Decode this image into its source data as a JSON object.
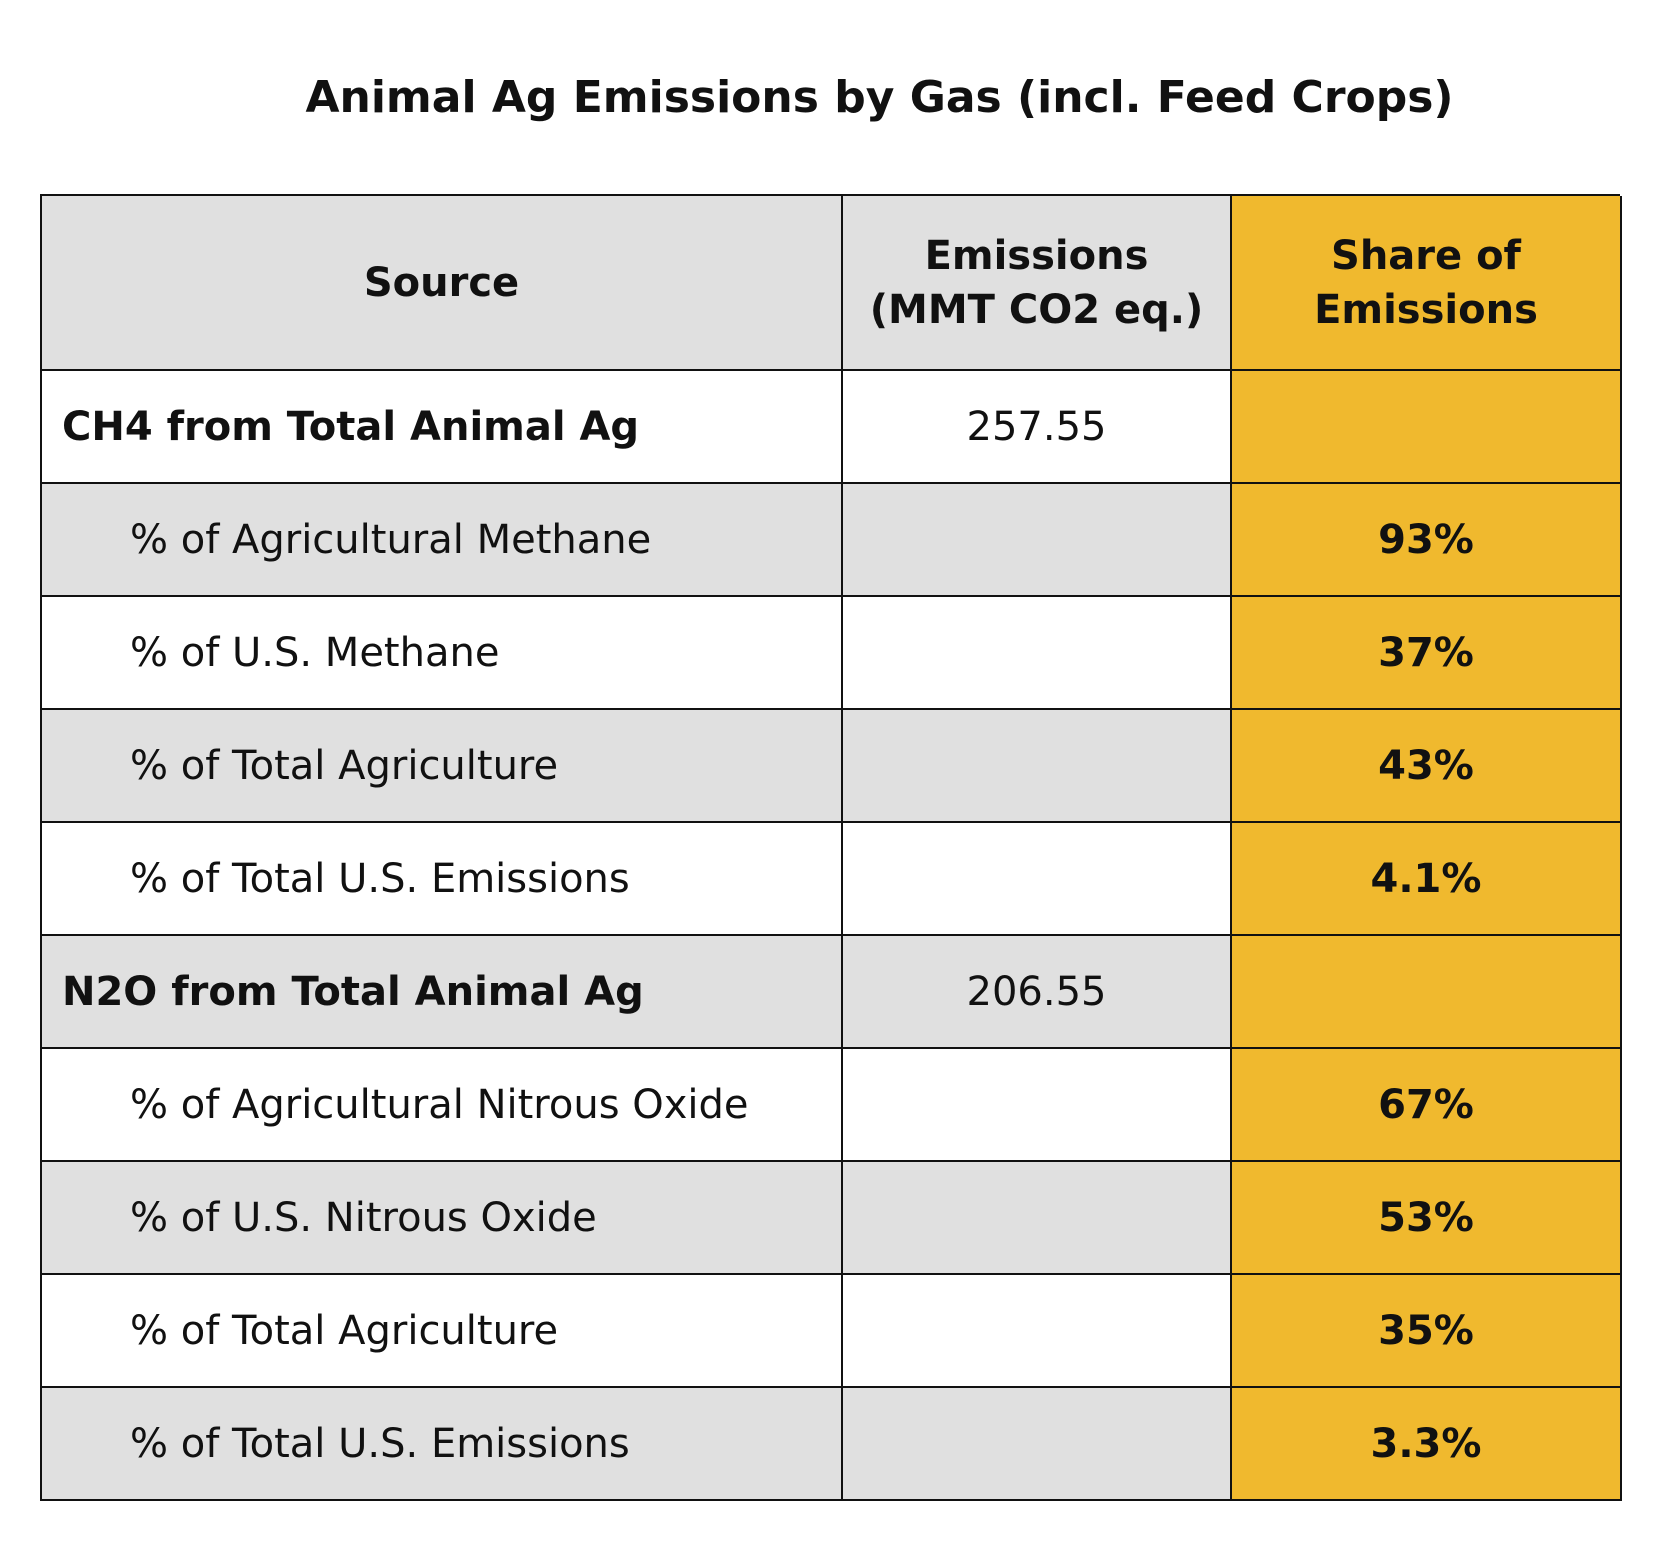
{
  "title": "Animal Ag Emissions by Gas (incl. Feed Crops)",
  "table": {
    "header": [
      "Source",
      "Emissions (MMT CO2 eq.)",
      "Share of Emissions"
    ],
    "rows": [
      {
        "source": "CH4 from Total Animal Ag",
        "emissions": "257.55"
      },
      {
        "source": "% of Agricultural Methane",
        "share": "93%"
      },
      {
        "source": "% of U.S. Methane",
        "share": "37%"
      },
      {
        "source": "% of Total Agriculture",
        "share": "43%"
      },
      {
        "source": "% of Total U.S. Emissions",
        "share": "4.1%"
      },
      {
        "source": "N2O from Total Animal Ag",
        "emissions": "206.55"
      },
      {
        "source": "% of Agricultural Nitrous Oxide",
        "share": "67%"
      },
      {
        "source": "% of U.S. Nitrous Oxide",
        "share": "53%"
      },
      {
        "source": "% of Total Agriculture",
        "share": "35%"
      },
      {
        "source": "% of Total U.S. Emissions",
        "share": "3.3%"
      }
    ]
  }
}
